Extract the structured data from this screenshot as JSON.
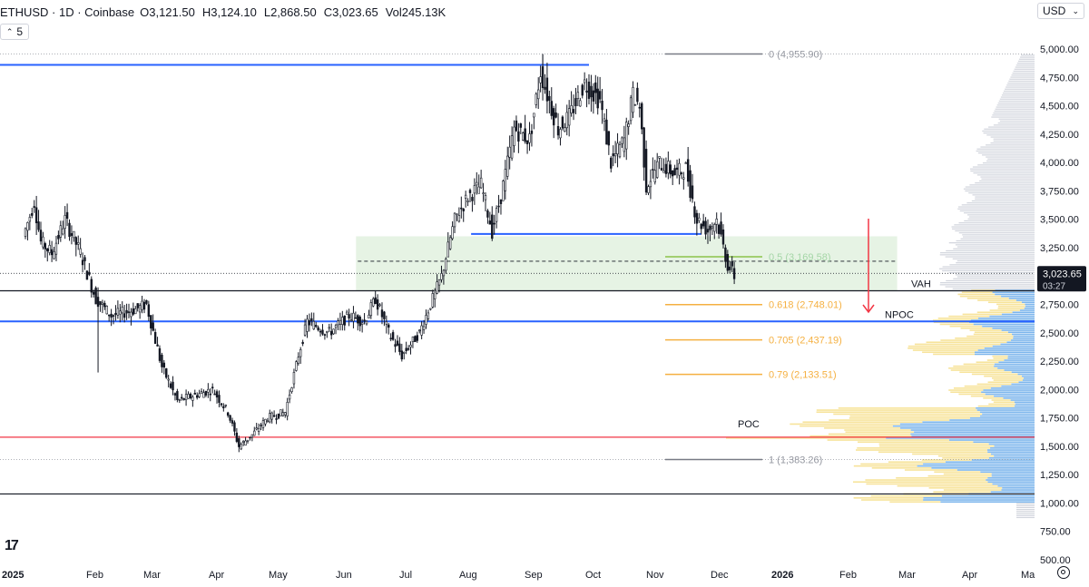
{
  "header": {
    "symbol": "ETHUSD · 1D · Coinbase",
    "open_label": "O",
    "open": "3,121.50",
    "high_label": "H",
    "high": "3,124.10",
    "low_label": "L",
    "low": "2,868.50",
    "close_label": "C",
    "close": "3,023.65",
    "vol_label": "Vol",
    "vol": "245.13K"
  },
  "interval_button": {
    "label": "5"
  },
  "currency_selector": {
    "label": "USD"
  },
  "price_label": {
    "price": "3,023.65",
    "countdown": "03:27"
  },
  "colors": {
    "candle": "#131722",
    "blue_line": "#2962ff",
    "box_fill": "#e6f3e4",
    "red_line": "#f23645",
    "fib_orange": "#f5b041",
    "fib_gray": "#787b86",
    "vp_yellow": "#f7e39a",
    "vp_blue": "#7cb5ec",
    "vp_gray": "#d1d4dc",
    "arrow": "#f23645"
  },
  "chart_data": {
    "type": "candlestick",
    "symbol": "ETHUSD",
    "interval": "1D",
    "exchange": "Coinbase",
    "y_axis": {
      "scale": "linear",
      "range": [
        500,
        5000
      ],
      "ticks": [
        "5,000.00",
        "4,750.00",
        "4,500.00",
        "4,250.00",
        "4,000.00",
        "3,750.00",
        "3,500.00",
        "3,250.00",
        "3,000.00",
        "2,750.00",
        "2,500.00",
        "2,250.00",
        "2,000.00",
        "1,750.00",
        "1,500.00",
        "1,250.00",
        "1,000.00",
        "750.00",
        "500.00"
      ]
    },
    "x_axis": {
      "ticks": [
        "2025",
        "Feb",
        "Mar",
        "Apr",
        "May",
        "Jun",
        "Jul",
        "Aug",
        "Sep",
        "Oct",
        "Nov",
        "Dec",
        "2026",
        "Feb",
        "Mar",
        "Apr",
        "Ma"
      ]
    },
    "price_path": [
      [
        "2025-01-01",
        3350
      ],
      [
        "2025-01-06",
        3650
      ],
      [
        "2025-01-09",
        3300
      ],
      [
        "2025-01-14",
        3200
      ],
      [
        "2025-01-20",
        3500
      ],
      [
        "2025-01-27",
        3200
      ],
      [
        "2025-02-03",
        2800
      ],
      [
        "2025-02-10",
        2650
      ],
      [
        "2025-02-20",
        2700
      ],
      [
        "2025-02-26",
        2750
      ],
      [
        "2025-03-05",
        2200
      ],
      [
        "2025-03-12",
        1900
      ],
      [
        "2025-03-20",
        1950
      ],
      [
        "2025-03-28",
        2000
      ],
      [
        "2025-04-04",
        1800
      ],
      [
        "2025-04-09",
        1500
      ],
      [
        "2025-04-15",
        1600
      ],
      [
        "2025-04-22",
        1750
      ],
      [
        "2025-04-30",
        1800
      ],
      [
        "2025-05-06",
        2300
      ],
      [
        "2025-05-10",
        2600
      ],
      [
        "2025-05-20",
        2500
      ],
      [
        "2025-05-29",
        2650
      ],
      [
        "2025-06-05",
        2600
      ],
      [
        "2025-06-10",
        2800
      ],
      [
        "2025-06-16",
        2500
      ],
      [
        "2025-06-22",
        2300
      ],
      [
        "2025-06-30",
        2500
      ],
      [
        "2025-07-10",
        3000
      ],
      [
        "2025-07-16",
        3500
      ],
      [
        "2025-07-22",
        3700
      ],
      [
        "2025-07-28",
        3800
      ],
      [
        "2025-08-02",
        3400
      ],
      [
        "2025-08-06",
        3700
      ],
      [
        "2025-08-12",
        4300
      ],
      [
        "2025-08-19",
        4200
      ],
      [
        "2025-08-24",
        4800
      ],
      [
        "2025-08-27",
        4600
      ],
      [
        "2025-09-01",
        4300
      ],
      [
        "2025-09-06",
        4400
      ],
      [
        "2025-09-13",
        4700
      ],
      [
        "2025-09-20",
        4550
      ],
      [
        "2025-09-25",
        4000
      ],
      [
        "2025-10-01",
        4200
      ],
      [
        "2025-10-05",
        4600
      ],
      [
        "2025-10-08",
        4500
      ],
      [
        "2025-10-11",
        3800
      ],
      [
        "2025-10-17",
        4000
      ],
      [
        "2025-10-24",
        3900
      ],
      [
        "2025-10-29",
        3950
      ],
      [
        "2025-11-03",
        3500
      ],
      [
        "2025-11-08",
        3400
      ],
      [
        "2025-11-12",
        3500
      ],
      [
        "2025-11-17",
        3100
      ],
      [
        "2025-11-20",
        3000
      ]
    ],
    "horizontal_lines": [
      {
        "label": "",
        "price": 4860,
        "color": "blue",
        "from": "2025-01-01",
        "to": "2025-09-14"
      },
      {
        "label": "",
        "price": 3370,
        "color": "blue",
        "from": "2025-08-03",
        "to": "2025-11-04"
      },
      {
        "label": "NPOC",
        "price": 2600,
        "color": "blue"
      },
      {
        "label": "VAH",
        "price": 2870,
        "color": "gray"
      },
      {
        "label": "POC",
        "price": 1580,
        "color": "red"
      },
      {
        "label": "",
        "price": 1080,
        "color": "gray"
      }
    ],
    "zone": {
      "from": "2025-06-01",
      "to": "2026-02-01",
      "low": 2870,
      "high": 3350
    },
    "fib_levels": [
      {
        "ratio": "0",
        "price": "4,955.90",
        "label": "0 (4,955.90)"
      },
      {
        "ratio": "0.5",
        "price": "3,169.58",
        "label": "0.5 (3,169.58)"
      },
      {
        "ratio": "0.618",
        "price": "2,748.01",
        "label": "0.618 (2,748.01)"
      },
      {
        "ratio": "0.705",
        "price": "2,437.19",
        "label": "0.705 (2,437.19)"
      },
      {
        "ratio": "0.79",
        "price": "2,133.51",
        "label": "0.79 (2,133.51)"
      },
      {
        "ratio": "1",
        "price": "1,383.26",
        "label": "1 (1,383.26)"
      }
    ],
    "last_price": 3023.65,
    "annotations": [
      "VAH",
      "NPOC",
      "POC"
    ]
  }
}
